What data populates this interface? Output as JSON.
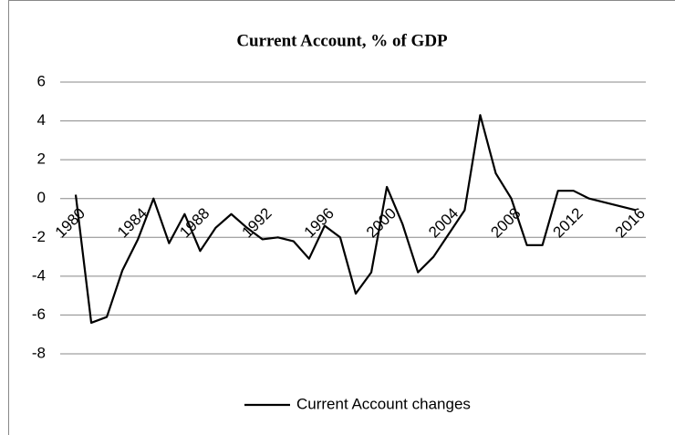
{
  "chart_data": {
    "type": "line",
    "title": "Current Account, % of GDP",
    "categories": [
      "1980",
      null,
      null,
      null,
      "1984",
      null,
      null,
      null,
      "1988",
      null,
      null,
      null,
      "1992",
      null,
      null,
      null,
      "1996",
      null,
      null,
      null,
      "2000",
      null,
      null,
      null,
      "2004",
      null,
      null,
      null,
      "2008",
      null,
      null,
      null,
      "2012",
      null,
      null,
      null,
      "2016"
    ],
    "series": [
      {
        "name": "Current Account changes",
        "color": "#000000",
        "values": [
          0.2,
          -6.4,
          -6.1,
          -3.7,
          -2.1,
          0.0,
          -2.3,
          -0.8,
          -2.7,
          -1.5,
          -0.8,
          -1.5,
          -2.1,
          -2.0,
          -2.2,
          -3.1,
          -1.4,
          -2.0,
          -4.9,
          -3.8,
          0.6,
          -1.3,
          -3.8,
          -3.0,
          -1.8,
          -0.6,
          4.3,
          1.3,
          0.0,
          -2.4,
          -2.4,
          0.4,
          0.4,
          0.0,
          -0.2,
          -0.4,
          -0.6
        ]
      }
    ],
    "ylim": [
      -8,
      6
    ],
    "yticks": [
      -8,
      -6,
      -4,
      -2,
      0,
      2,
      4,
      6
    ],
    "grid": true,
    "legend": "bottom"
  }
}
